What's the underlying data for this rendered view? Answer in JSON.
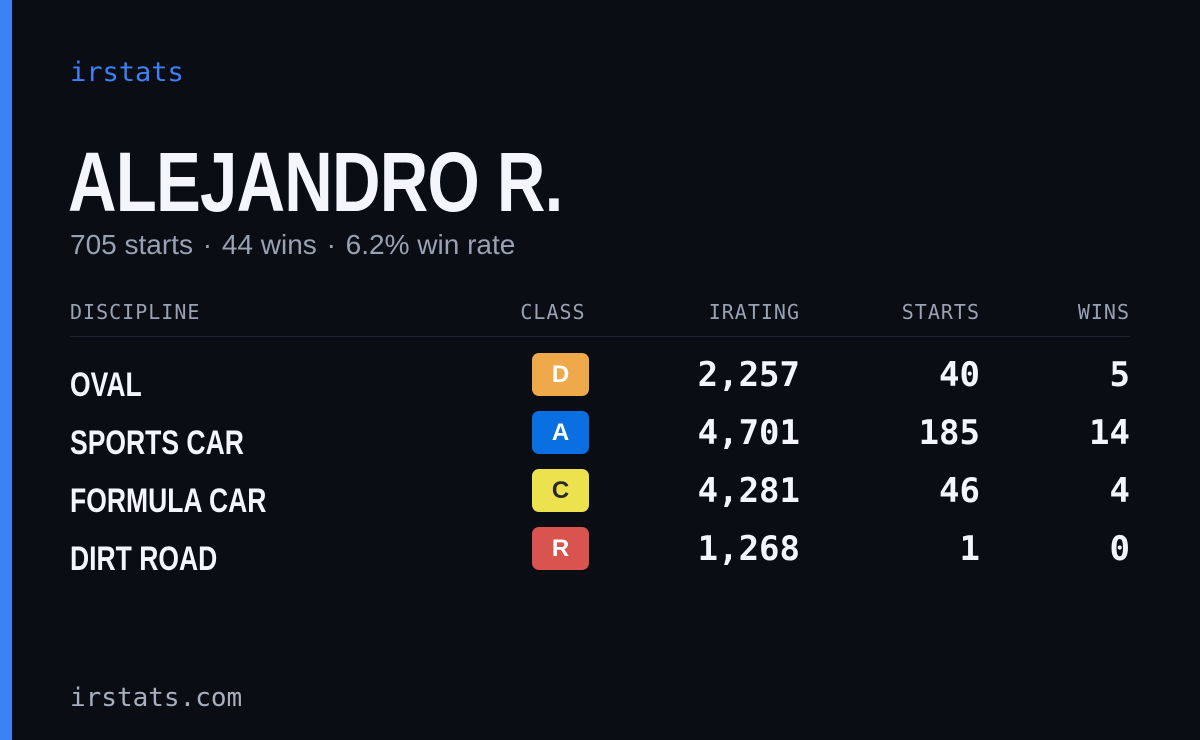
{
  "brand": "irstats",
  "driver": {
    "name": "ALEJANDRO R.",
    "summary": {
      "starts": "705 starts",
      "wins": "44 wins",
      "win_rate": "6.2% win rate",
      "separator": "·"
    }
  },
  "table": {
    "headers": {
      "discipline": "DISCIPLINE",
      "class": "CLASS",
      "irating": "IRATING",
      "starts": "STARTS",
      "wins": "WINS"
    },
    "rows": [
      {
        "discipline": "OVAL",
        "class": "D",
        "class_color": "#f0a94a",
        "class_text_color": "#ffffff",
        "irating": "2,257",
        "starts": "40",
        "wins": "5"
      },
      {
        "discipline": "SPORTS CAR",
        "class": "A",
        "class_color": "#0a6fe0",
        "class_text_color": "#ffffff",
        "irating": "4,701",
        "starts": "185",
        "wins": "14"
      },
      {
        "discipline": "FORMULA CAR",
        "class": "C",
        "class_color": "#ece24e",
        "class_text_color": "#2a2a2a",
        "irating": "4,281",
        "starts": "46",
        "wins": "4"
      },
      {
        "discipline": "DIRT ROAD",
        "class": "R",
        "class_color": "#d9534f",
        "class_text_color": "#ffffff",
        "irating": "1,268",
        "starts": "1",
        "wins": "0"
      }
    ]
  },
  "footer": "irstats.com",
  "colors": {
    "background": "#0a0d14",
    "accent": "#3b82f6",
    "text_primary": "#f4f6fb",
    "text_muted": "#98a2b3"
  }
}
